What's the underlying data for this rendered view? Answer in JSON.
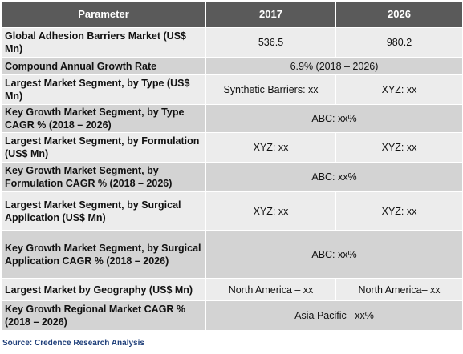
{
  "header": {
    "parameter": "Parameter",
    "col1": "2017",
    "col2": "2026"
  },
  "rows": [
    {
      "label": "Global Adhesion Barriers Market (US$ Mn)",
      "v1": "536.5",
      "v2": "980.2"
    },
    {
      "label": "Compound Annual Growth Rate",
      "merged": "6.9% (2018 – 2026)"
    },
    {
      "label": "Largest Market Segment, by Type (US$ Mn)",
      "v1": "Synthetic Barriers: xx",
      "v2": "XYZ: xx"
    },
    {
      "label": "Key Growth Market Segment, by Type CAGR % (2018 – 2026)",
      "merged": "ABC: xx%"
    },
    {
      "label": "Largest Market Segment, by Formulation (US$ Mn)",
      "v1": "XYZ: xx",
      "v2": "XYZ: xx"
    },
    {
      "label": "Key Growth Market Segment, by Formulation CAGR % (2018 – 2026)",
      "merged": "ABC: xx%"
    },
    {
      "label": "Largest Market Segment, by Surgical Application (US$ Mn)",
      "v1": "XYZ: xx",
      "v2": "XYZ: xx"
    },
    {
      "label": "Key Growth Market Segment, by Surgical Application CAGR % (2018 – 2026)",
      "merged": "ABC: xx%"
    },
    {
      "label": "Largest Market by Geography (US$ Mn)",
      "v1": "North America – xx",
      "v2": "North America– xx"
    },
    {
      "label": "Key Growth Regional Market CAGR % (2018 – 2026)",
      "merged": "Asia Pacific– xx%"
    }
  ],
  "source": "Source: Credence Research Analysis"
}
